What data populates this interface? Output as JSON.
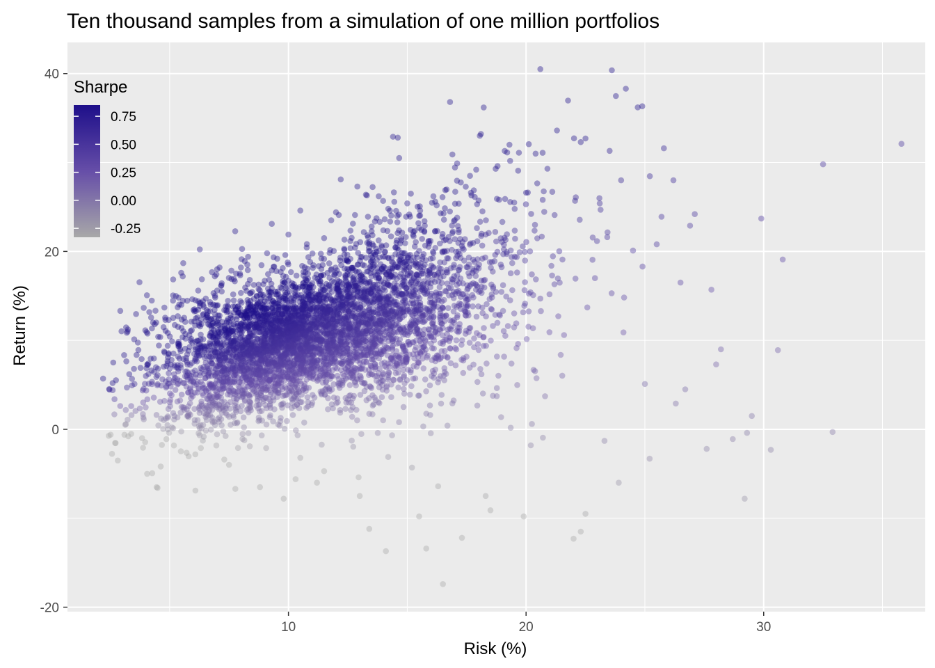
{
  "chart_data": {
    "type": "scatter",
    "title": "Ten thousand samples from a simulation of one million portfolios",
    "xlabel": "Risk (%)",
    "ylabel": "Return (%)",
    "xlim": [
      0.7,
      36.8
    ],
    "ylim": [
      -20.5,
      43.5
    ],
    "x_ticks": [
      10,
      20,
      30
    ],
    "x_minor_ticks": [
      5,
      15,
      25,
      35
    ],
    "y_ticks": [
      -20,
      0,
      20,
      40
    ],
    "y_minor_ticks": [
      -10,
      10,
      30
    ],
    "grid": true,
    "panel_color": "#ebebeb",
    "gridline_color": "#ffffff",
    "point_alpha": 0.4,
    "legend": {
      "title": "Sharpe",
      "position": "top-left",
      "type": "colorbar",
      "low_color": "#a8a8a8",
      "high_color": "#1e0f8a",
      "range": [
        -0.33,
        0.85
      ],
      "tick_values": [
        0.75,
        0.5,
        0.25,
        0.0,
        -0.25
      ],
      "tick_labels": [
        "0.75",
        "0.50",
        "0.25",
        "0.00",
        "-0.25"
      ]
    },
    "points": [
      [
        2.2,
        5.7
      ],
      [
        2.6,
        5.2
      ],
      [
        2.6,
        4.4
      ],
      [
        3.2,
        4.7
      ],
      [
        3.3,
        6.2
      ],
      [
        3.5,
        6.8
      ],
      [
        4.0,
        6.0
      ],
      [
        4.1,
        7.4
      ],
      [
        4.3,
        12.0
      ],
      [
        4.6,
        3.1
      ],
      [
        5.1,
        9.9
      ],
      [
        5.2,
        1.5
      ],
      [
        5.5,
        11.4
      ],
      [
        5.6,
        2.4
      ],
      [
        6.1,
        13.3
      ],
      [
        6.2,
        15.6
      ],
      [
        6.7,
        14.3
      ],
      [
        6.9,
        17.2
      ],
      [
        7.1,
        18.2
      ],
      [
        7.3,
        -3.4
      ],
      [
        7.6,
        16.9
      ],
      [
        8.0,
        18.2
      ],
      [
        8.3,
        19.4
      ],
      [
        8.4,
        2.5
      ],
      [
        8.8,
        -6.5
      ],
      [
        9.1,
        19.8
      ],
      [
        9.3,
        23.1
      ],
      [
        9.8,
        -7.8
      ],
      [
        10.0,
        21.9
      ],
      [
        10.3,
        -5.6
      ],
      [
        10.5,
        24.6
      ],
      [
        10.5,
        -3.2
      ],
      [
        11.2,
        -6.0
      ],
      [
        11.5,
        21.5
      ],
      [
        11.5,
        -4.7
      ],
      [
        11.8,
        23.5
      ],
      [
        12.0,
        24.4
      ],
      [
        12.2,
        28.1
      ],
      [
        12.4,
        2.3
      ],
      [
        12.8,
        24.1
      ],
      [
        12.9,
        27.3
      ],
      [
        13.0,
        -7.5
      ],
      [
        13.3,
        26.3
      ],
      [
        13.4,
        -11.2
      ],
      [
        13.5,
        22.8
      ],
      [
        13.8,
        26.2
      ],
      [
        14.2,
        24.8
      ],
      [
        14.1,
        -13.7
      ],
      [
        14.4,
        32.9
      ],
      [
        14.6,
        32.8
      ],
      [
        15.0,
        25.4
      ],
      [
        15.2,
        -4.3
      ],
      [
        15.5,
        24.0
      ],
      [
        15.5,
        -9.8
      ],
      [
        15.8,
        -13.4
      ],
      [
        16.1,
        26.2
      ],
      [
        16.3,
        -6.4
      ],
      [
        16.5,
        -17.4
      ],
      [
        16.6,
        26.9
      ],
      [
        16.8,
        36.8
      ],
      [
        16.9,
        30.9
      ],
      [
        17.1,
        23.8
      ],
      [
        17.1,
        29.9
      ],
      [
        17.3,
        -12.2
      ],
      [
        17.7,
        26.3
      ],
      [
        17.9,
        29.2
      ],
      [
        18.1,
        33.2
      ],
      [
        18.3,
        -7.5
      ],
      [
        18.5,
        -9.1
      ],
      [
        18.8,
        29.6
      ],
      [
        19.1,
        31.3
      ],
      [
        19.3,
        32.0
      ],
      [
        19.5,
        25.5
      ],
      [
        19.7,
        31.1
      ],
      [
        19.9,
        -9.8
      ],
      [
        20.0,
        26.6
      ],
      [
        20.2,
        -1.8
      ],
      [
        20.4,
        31.0
      ],
      [
        20.6,
        40.5
      ],
      [
        20.7,
        25.8
      ],
      [
        20.9,
        29.3
      ],
      [
        21.2,
        24.1
      ],
      [
        21.3,
        33.6
      ],
      [
        21.6,
        10.6
      ],
      [
        22.0,
        -12.3
      ],
      [
        22.3,
        -11.5
      ],
      [
        22.3,
        32.3
      ],
      [
        22.5,
        32.7
      ],
      [
        22.5,
        -9.5
      ],
      [
        22.9,
        17.0
      ],
      [
        23.1,
        25.4
      ],
      [
        23.3,
        -1.3
      ],
      [
        23.6,
        15.3
      ],
      [
        23.9,
        -6.0
      ],
      [
        24.0,
        28.0
      ],
      [
        24.1,
        10.9
      ],
      [
        24.2,
        38.3
      ],
      [
        24.5,
        20.1
      ],
      [
        24.7,
        36.2
      ],
      [
        24.9,
        18.3
      ],
      [
        25.0,
        5.1
      ],
      [
        25.2,
        -3.3
      ],
      [
        25.5,
        20.8
      ],
      [
        25.7,
        23.9
      ],
      [
        25.8,
        31.6
      ],
      [
        26.2,
        28.0
      ],
      [
        26.3,
        2.9
      ],
      [
        26.5,
        16.5
      ],
      [
        26.7,
        4.5
      ],
      [
        26.9,
        22.9
      ],
      [
        27.1,
        24.2
      ],
      [
        27.6,
        -2.2
      ],
      [
        27.8,
        15.7
      ],
      [
        28.0,
        7.3
      ],
      [
        28.2,
        9.0
      ],
      [
        28.7,
        -1.1
      ],
      [
        29.2,
        -7.8
      ],
      [
        29.3,
        -0.4
      ],
      [
        29.5,
        1.5
      ],
      [
        29.9,
        23.7
      ],
      [
        30.3,
        -2.3
      ],
      [
        30.6,
        8.9
      ],
      [
        30.8,
        19.1
      ],
      [
        32.5,
        29.8
      ],
      [
        32.9,
        -0.3
      ],
      [
        35.8,
        32.1
      ]
    ]
  }
}
